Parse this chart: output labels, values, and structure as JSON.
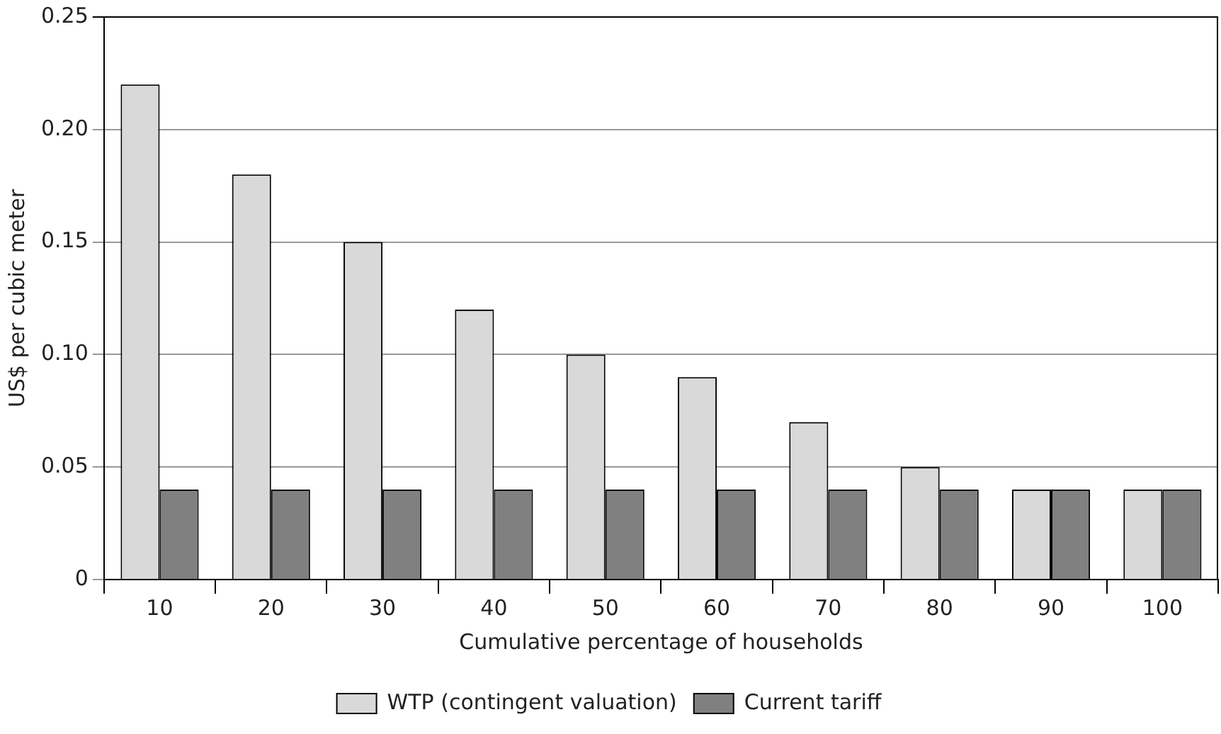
{
  "chart_data": {
    "type": "bar",
    "xlabel": "Cumulative percentage of households",
    "ylabel": "US$ per cubic meter",
    "categories": [
      "10",
      "20",
      "30",
      "40",
      "50",
      "60",
      "70",
      "80",
      "90",
      "100"
    ],
    "series": [
      {
        "name": "WTP (contingent valuation)",
        "color": "#d9d9d9",
        "values": [
          0.22,
          0.18,
          0.15,
          0.12,
          0.1,
          0.09,
          0.07,
          0.05,
          0.04,
          0.04
        ]
      },
      {
        "name": "Current tariff",
        "color": "#808080",
        "values": [
          0.04,
          0.04,
          0.04,
          0.04,
          0.04,
          0.04,
          0.04,
          0.04,
          0.04,
          0.04
        ]
      }
    ],
    "ylim": [
      0,
      0.25
    ],
    "yticks": [
      0,
      {
        "value": 0.05,
        "label": "0.05"
      },
      {
        "value": 0.1,
        "label": "0.10"
      },
      {
        "value": 0.15,
        "label": "0.15"
      },
      {
        "value": 0.2,
        "label": "0.20"
      },
      {
        "value": 0.25,
        "label": "0.25"
      }
    ],
    "grid": "y",
    "legend": "bottom"
  }
}
